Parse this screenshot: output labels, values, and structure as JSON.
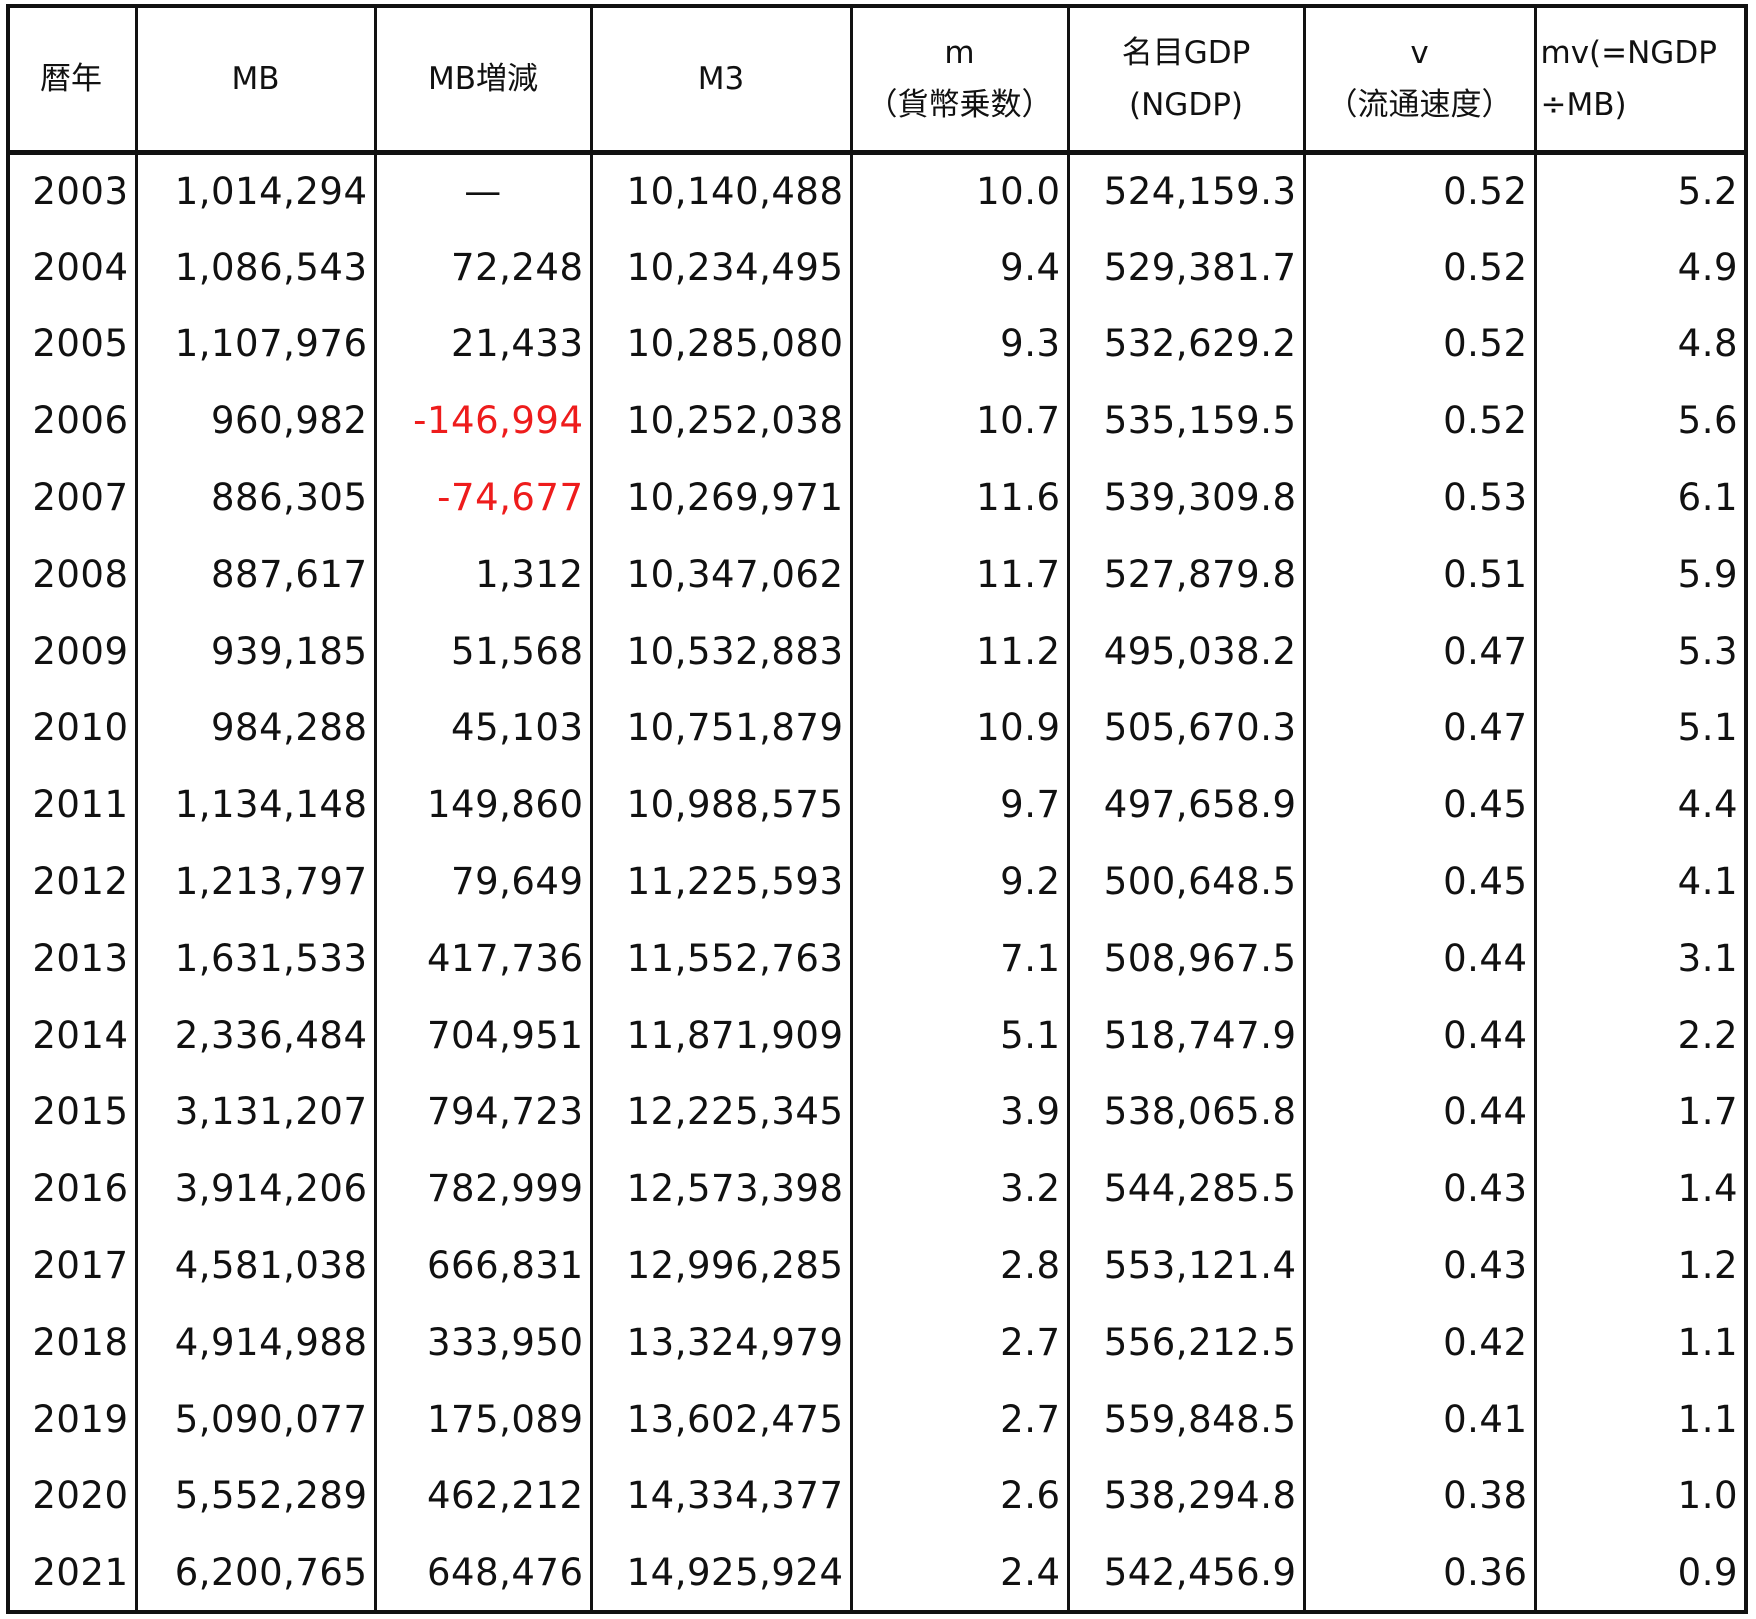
{
  "table": {
    "headers": [
      {
        "line1": "暦年",
        "line2": ""
      },
      {
        "line1": "MB",
        "line2": ""
      },
      {
        "line1": "MB増減",
        "line2": ""
      },
      {
        "line1": "M3",
        "line2": ""
      },
      {
        "line1": "m",
        "line2": "（貨幣乗数）"
      },
      {
        "line1": "名目GDP",
        "line2": "(NGDP)"
      },
      {
        "line1": "v",
        "line2": "（流通速度）"
      },
      {
        "line1": "mv(=NGDP",
        "line2": "÷MB)"
      }
    ],
    "rows": [
      {
        "year": "2003",
        "mb": "1,014,294",
        "mb_change": "—",
        "m3": "10,140,488",
        "m": "10.0",
        "ngdp": "524,159.3",
        "v": "0.52",
        "mv": "5.2"
      },
      {
        "year": "2004",
        "mb": "1,086,543",
        "mb_change": "72,248",
        "m3": "10,234,495",
        "m": "9.4",
        "ngdp": "529,381.7",
        "v": "0.52",
        "mv": "4.9"
      },
      {
        "year": "2005",
        "mb": "1,107,976",
        "mb_change": "21,433",
        "m3": "10,285,080",
        "m": "9.3",
        "ngdp": "532,629.2",
        "v": "0.52",
        "mv": "4.8"
      },
      {
        "year": "2006",
        "mb": "960,982",
        "mb_change": "-146,994",
        "m3": "10,252,038",
        "m": "10.7",
        "ngdp": "535,159.5",
        "v": "0.52",
        "mv": "5.6"
      },
      {
        "year": "2007",
        "mb": "886,305",
        "mb_change": "-74,677",
        "m3": "10,269,971",
        "m": "11.6",
        "ngdp": "539,309.8",
        "v": "0.53",
        "mv": "6.1"
      },
      {
        "year": "2008",
        "mb": "887,617",
        "mb_change": "1,312",
        "m3": "10,347,062",
        "m": "11.7",
        "ngdp": "527,879.8",
        "v": "0.51",
        "mv": "5.9"
      },
      {
        "year": "2009",
        "mb": "939,185",
        "mb_change": "51,568",
        "m3": "10,532,883",
        "m": "11.2",
        "ngdp": "495,038.2",
        "v": "0.47",
        "mv": "5.3"
      },
      {
        "year": "2010",
        "mb": "984,288",
        "mb_change": "45,103",
        "m3": "10,751,879",
        "m": "10.9",
        "ngdp": "505,670.3",
        "v": "0.47",
        "mv": "5.1"
      },
      {
        "year": "2011",
        "mb": "1,134,148",
        "mb_change": "149,860",
        "m3": "10,988,575",
        "m": "9.7",
        "ngdp": "497,658.9",
        "v": "0.45",
        "mv": "4.4"
      },
      {
        "year": "2012",
        "mb": "1,213,797",
        "mb_change": "79,649",
        "m3": "11,225,593",
        "m": "9.2",
        "ngdp": "500,648.5",
        "v": "0.45",
        "mv": "4.1"
      },
      {
        "year": "2013",
        "mb": "1,631,533",
        "mb_change": "417,736",
        "m3": "11,552,763",
        "m": "7.1",
        "ngdp": "508,967.5",
        "v": "0.44",
        "mv": "3.1"
      },
      {
        "year": "2014",
        "mb": "2,336,484",
        "mb_change": "704,951",
        "m3": "11,871,909",
        "m": "5.1",
        "ngdp": "518,747.9",
        "v": "0.44",
        "mv": "2.2"
      },
      {
        "year": "2015",
        "mb": "3,131,207",
        "mb_change": "794,723",
        "m3": "12,225,345",
        "m": "3.9",
        "ngdp": "538,065.8",
        "v": "0.44",
        "mv": "1.7"
      },
      {
        "year": "2016",
        "mb": "3,914,206",
        "mb_change": "782,999",
        "m3": "12,573,398",
        "m": "3.2",
        "ngdp": "544,285.5",
        "v": "0.43",
        "mv": "1.4"
      },
      {
        "year": "2017",
        "mb": "4,581,038",
        "mb_change": "666,831",
        "m3": "12,996,285",
        "m": "2.8",
        "ngdp": "553,121.4",
        "v": "0.43",
        "mv": "1.2"
      },
      {
        "year": "2018",
        "mb": "4,914,988",
        "mb_change": "333,950",
        "m3": "13,324,979",
        "m": "2.7",
        "ngdp": "556,212.5",
        "v": "0.42",
        "mv": "1.1"
      },
      {
        "year": "2019",
        "mb": "5,090,077",
        "mb_change": "175,089",
        "m3": "13,602,475",
        "m": "2.7",
        "ngdp": "559,848.5",
        "v": "0.41",
        "mv": "1.1"
      },
      {
        "year": "2020",
        "mb": "5,552,289",
        "mb_change": "462,212",
        "m3": "14,334,377",
        "m": "2.6",
        "ngdp": "538,294.8",
        "v": "0.38",
        "mv": "1.0"
      },
      {
        "year": "2021",
        "mb": "6,200,765",
        "mb_change": "648,476",
        "m3": "14,925,924",
        "m": "2.4",
        "ngdp": "542,456.9",
        "v": "0.36",
        "mv": "0.9"
      }
    ]
  },
  "colors": {
    "text": "#111111",
    "negative": "#ee1c1c",
    "grid": "#111111",
    "background": "#ffffff"
  }
}
